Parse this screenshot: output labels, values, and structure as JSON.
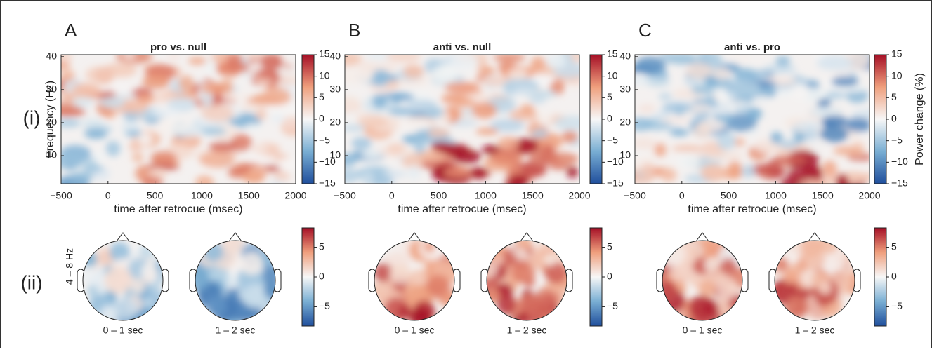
{
  "row_labels": [
    "(i)",
    "(ii)"
  ],
  "panels": [
    {
      "label": "A",
      "title": "pro vs. null",
      "topo_labels": [
        "0 – 1 sec",
        "1 – 2 sec"
      ]
    },
    {
      "label": "B",
      "title": "anti vs. null",
      "topo_labels": [
        "0 – 1 sec",
        "1 – 2 sec"
      ]
    },
    {
      "label": "C",
      "title": "anti vs. pro",
      "topo_labels": [
        "0 – 1 sec",
        "1 – 2 sec"
      ]
    }
  ],
  "tf_axes": {
    "xlabel": "time after retrocue (msec)",
    "ylabel": "Frequency (Hz)",
    "xlim": [
      -500,
      2000
    ],
    "xticks": [
      {
        "value": -500,
        "label": "−500"
      },
      0,
      500,
      1000,
      1500,
      2000
    ],
    "ylim": [
      1.5,
      40.6
    ],
    "yticks": [
      10,
      20,
      30,
      40
    ],
    "clim": [
      -15,
      15
    ],
    "cticks": [
      {
        "value": -15,
        "label": "−15"
      },
      {
        "value": -10,
        "label": "−10"
      },
      {
        "value": -5,
        "label": "−5"
      },
      0,
      5,
      10,
      15
    ],
    "colorbar_label": "Power change (%)"
  },
  "topo": {
    "ylabel": "4 – 8 Hz",
    "clim": [
      -8.25,
      8.25
    ],
    "cticks": [
      {
        "value": -5,
        "label": "−5"
      },
      0,
      5
    ]
  }
}
